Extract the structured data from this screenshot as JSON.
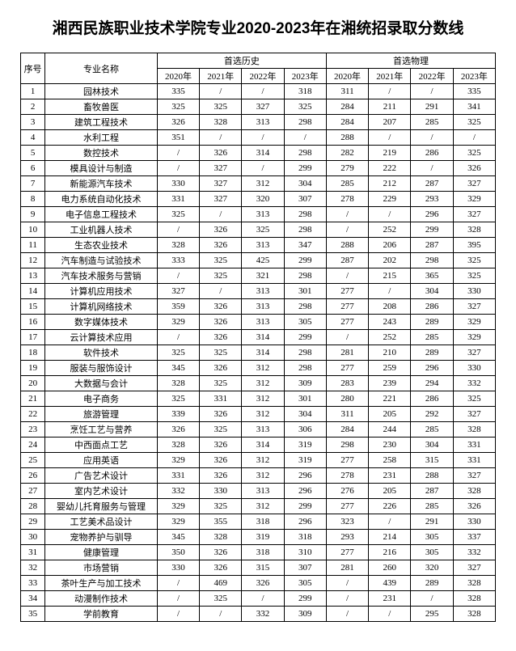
{
  "title": "湘西民族职业技术学院专业2020-2023年在湘统招录取分数线",
  "columns": {
    "idx": "序号",
    "major": "专业名称",
    "group1": "首选历史",
    "group2": "首选物理",
    "years": [
      "2020年",
      "2021年",
      "2022年",
      "2023年"
    ]
  },
  "rows": [
    {
      "idx": "1",
      "major": "园林技术",
      "h": [
        "335",
        "/",
        "/",
        "318"
      ],
      "p": [
        "311",
        "/",
        "/",
        "335"
      ]
    },
    {
      "idx": "2",
      "major": "畜牧兽医",
      "h": [
        "325",
        "325",
        "327",
        "325"
      ],
      "p": [
        "284",
        "211",
        "291",
        "341"
      ]
    },
    {
      "idx": "3",
      "major": "建筑工程技术",
      "h": [
        "326",
        "328",
        "313",
        "298"
      ],
      "p": [
        "284",
        "207",
        "285",
        "325"
      ]
    },
    {
      "idx": "4",
      "major": "水利工程",
      "h": [
        "351",
        "/",
        "/",
        "/"
      ],
      "p": [
        "288",
        "/",
        "/",
        "/"
      ]
    },
    {
      "idx": "5",
      "major": "数控技术",
      "h": [
        "/",
        "326",
        "314",
        "298"
      ],
      "p": [
        "282",
        "219",
        "286",
        "325"
      ]
    },
    {
      "idx": "6",
      "major": "模具设计与制造",
      "h": [
        "/",
        "327",
        "/",
        "299"
      ],
      "p": [
        "279",
        "222",
        "/",
        "326"
      ]
    },
    {
      "idx": "7",
      "major": "新能源汽车技术",
      "h": [
        "330",
        "327",
        "312",
        "304"
      ],
      "p": [
        "285",
        "212",
        "287",
        "327"
      ]
    },
    {
      "idx": "8",
      "major": "电力系统自动化技术",
      "h": [
        "331",
        "327",
        "320",
        "307"
      ],
      "p": [
        "278",
        "229",
        "293",
        "329"
      ]
    },
    {
      "idx": "9",
      "major": "电子信息工程技术",
      "h": [
        "325",
        "/",
        "313",
        "298"
      ],
      "p": [
        "/",
        "/",
        "296",
        "327"
      ]
    },
    {
      "idx": "10",
      "major": "工业机器人技术",
      "h": [
        "/",
        "326",
        "325",
        "298"
      ],
      "p": [
        "/",
        "252",
        "299",
        "328"
      ]
    },
    {
      "idx": "11",
      "major": "生态农业技术",
      "h": [
        "328",
        "326",
        "313",
        "347"
      ],
      "p": [
        "288",
        "206",
        "287",
        "395"
      ]
    },
    {
      "idx": "12",
      "major": "汽车制造与试验技术",
      "h": [
        "333",
        "325",
        "425",
        "299"
      ],
      "p": [
        "287",
        "202",
        "298",
        "325"
      ]
    },
    {
      "idx": "13",
      "major": "汽车技术服务与营销",
      "h": [
        "/",
        "325",
        "321",
        "298"
      ],
      "p": [
        "/",
        "215",
        "365",
        "325"
      ]
    },
    {
      "idx": "14",
      "major": "计算机应用技术",
      "h": [
        "327",
        "/",
        "313",
        "301"
      ],
      "p": [
        "277",
        "/",
        "304",
        "330"
      ]
    },
    {
      "idx": "15",
      "major": "计算机网络技术",
      "h": [
        "359",
        "326",
        "313",
        "298"
      ],
      "p": [
        "277",
        "208",
        "286",
        "327"
      ]
    },
    {
      "idx": "16",
      "major": "数字媒体技术",
      "h": [
        "329",
        "326",
        "313",
        "305"
      ],
      "p": [
        "277",
        "243",
        "289",
        "329"
      ]
    },
    {
      "idx": "17",
      "major": "云计算技术应用",
      "h": [
        "/",
        "326",
        "314",
        "299"
      ],
      "p": [
        "/",
        "252",
        "285",
        "329"
      ]
    },
    {
      "idx": "18",
      "major": "软件技术",
      "h": [
        "325",
        "325",
        "314",
        "298"
      ],
      "p": [
        "281",
        "210",
        "289",
        "327"
      ]
    },
    {
      "idx": "19",
      "major": "服装与服饰设计",
      "h": [
        "345",
        "326",
        "312",
        "298"
      ],
      "p": [
        "277",
        "259",
        "296",
        "330"
      ]
    },
    {
      "idx": "20",
      "major": "大数据与会计",
      "h": [
        "328",
        "325",
        "312",
        "309"
      ],
      "p": [
        "283",
        "239",
        "294",
        "332"
      ]
    },
    {
      "idx": "21",
      "major": "电子商务",
      "h": [
        "325",
        "331",
        "312",
        "301"
      ],
      "p": [
        "280",
        "221",
        "286",
        "325"
      ]
    },
    {
      "idx": "22",
      "major": "旅游管理",
      "h": [
        "339",
        "326",
        "312",
        "304"
      ],
      "p": [
        "311",
        "205",
        "292",
        "327"
      ]
    },
    {
      "idx": "23",
      "major": "烹饪工艺与营养",
      "h": [
        "326",
        "325",
        "313",
        "306"
      ],
      "p": [
        "284",
        "244",
        "285",
        "328"
      ]
    },
    {
      "idx": "24",
      "major": "中西面点工艺",
      "h": [
        "328",
        "326",
        "314",
        "319"
      ],
      "p": [
        "298",
        "230",
        "304",
        "331"
      ]
    },
    {
      "idx": "25",
      "major": "应用英语",
      "h": [
        "329",
        "326",
        "312",
        "319"
      ],
      "p": [
        "277",
        "258",
        "315",
        "331"
      ]
    },
    {
      "idx": "26",
      "major": "广告艺术设计",
      "h": [
        "331",
        "326",
        "312",
        "296"
      ],
      "p": [
        "278",
        "231",
        "288",
        "327"
      ]
    },
    {
      "idx": "27",
      "major": "室内艺术设计",
      "h": [
        "332",
        "330",
        "313",
        "296"
      ],
      "p": [
        "276",
        "205",
        "287",
        "328"
      ]
    },
    {
      "idx": "28",
      "major": "婴幼儿托育服务与管理",
      "h": [
        "329",
        "325",
        "312",
        "299"
      ],
      "p": [
        "277",
        "226",
        "285",
        "326"
      ]
    },
    {
      "idx": "29",
      "major": "工艺美术品设计",
      "h": [
        "329",
        "355",
        "318",
        "296"
      ],
      "p": [
        "323",
        "/",
        "291",
        "330"
      ]
    },
    {
      "idx": "30",
      "major": "宠物养护与驯导",
      "h": [
        "345",
        "328",
        "319",
        "318"
      ],
      "p": [
        "293",
        "214",
        "305",
        "337"
      ]
    },
    {
      "idx": "31",
      "major": "健康管理",
      "h": [
        "350",
        "326",
        "318",
        "310"
      ],
      "p": [
        "277",
        "216",
        "305",
        "332"
      ]
    },
    {
      "idx": "32",
      "major": "市场营销",
      "h": [
        "330",
        "326",
        "315",
        "307"
      ],
      "p": [
        "281",
        "260",
        "320",
        "327"
      ]
    },
    {
      "idx": "33",
      "major": "茶叶生产与加工技术",
      "h": [
        "/",
        "469",
        "326",
        "305"
      ],
      "p": [
        "/",
        "439",
        "289",
        "328"
      ]
    },
    {
      "idx": "34",
      "major": "动漫制作技术",
      "h": [
        "/",
        "325",
        "/",
        "299"
      ],
      "p": [
        "/",
        "231",
        "/",
        "328"
      ]
    },
    {
      "idx": "35",
      "major": "学前教育",
      "h": [
        "/",
        "/",
        "332",
        "309"
      ],
      "p": [
        "/",
        "/",
        "295",
        "328"
      ]
    }
  ],
  "style": {
    "background": "#ffffff",
    "text_color": "#000000",
    "border_color": "#000000",
    "title_fontsize": 19,
    "body_fontsize": 11
  }
}
